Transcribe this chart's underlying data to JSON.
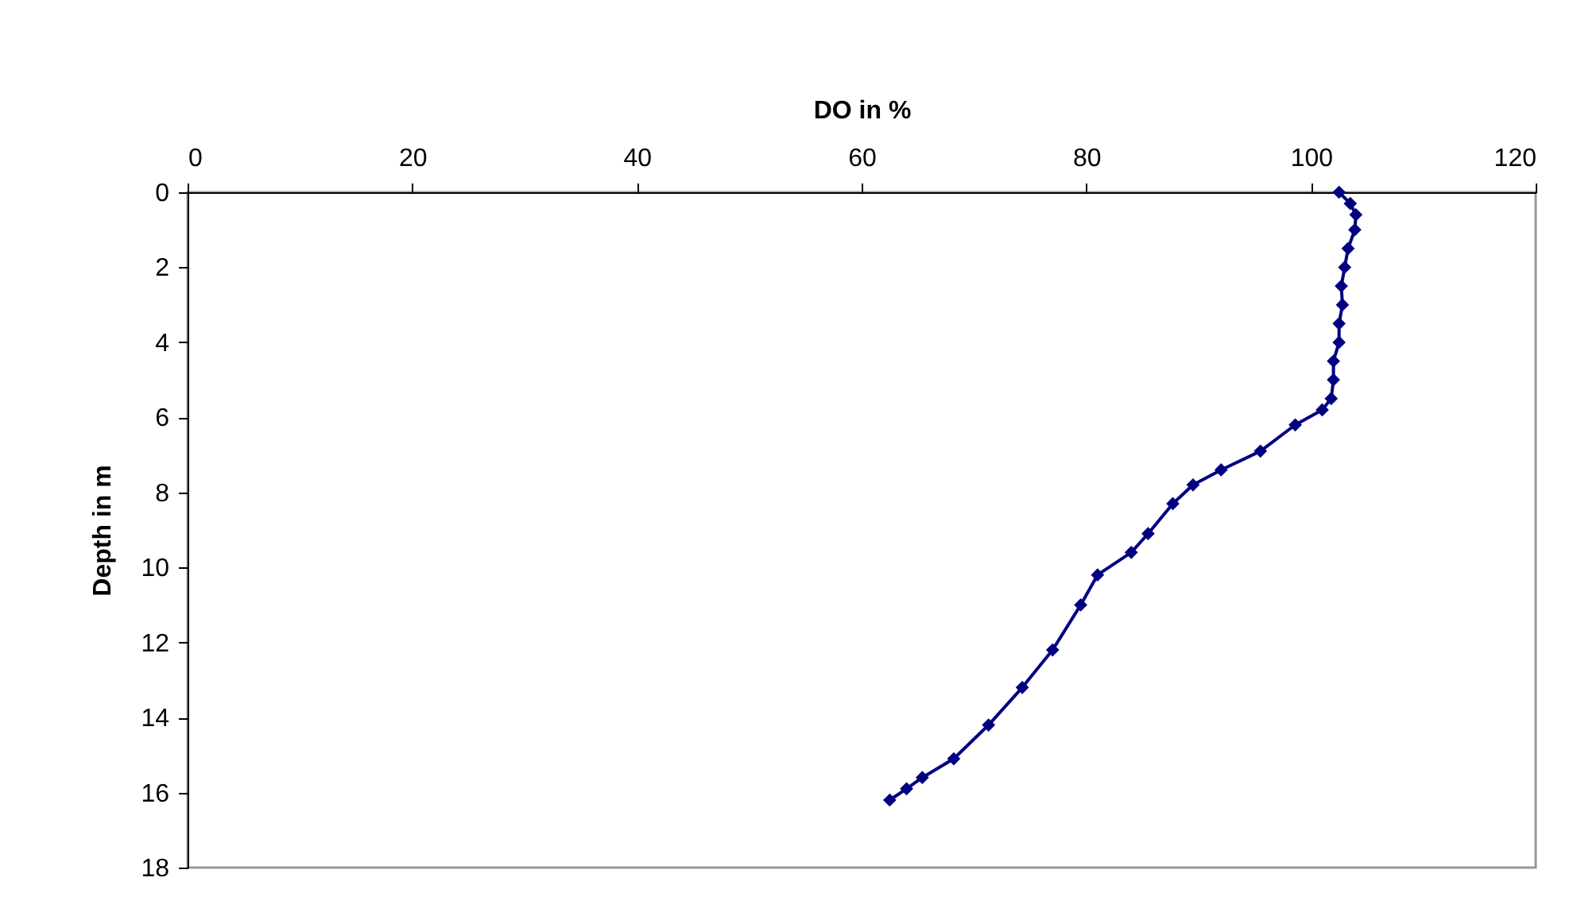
{
  "chart_data": {
    "type": "line",
    "xlabel": "DO in %",
    "ylabel": "Depth in m",
    "xlim": [
      0,
      120
    ],
    "xticks": [
      0,
      20,
      40,
      60,
      80,
      100,
      120
    ],
    "ylim": [
      18,
      0
    ],
    "yticks": [
      0,
      2,
      4,
      6,
      8,
      10,
      12,
      14,
      16,
      18
    ],
    "grid": false,
    "marker": "diamond",
    "line_style": "solid",
    "series": [
      {
        "color": "#000080",
        "x": [
          102.5,
          103.5,
          104,
          103.9,
          103.3,
          103,
          102.7,
          102.8,
          102.5,
          102.5,
          102,
          102,
          101.8,
          101,
          98.6,
          95.5,
          92,
          89.5,
          87.7,
          85.5,
          84,
          81,
          79.5,
          77,
          74.3,
          71.3,
          68.2,
          65.4,
          64,
          62.5
        ],
        "values": [
          0,
          0.3,
          0.6,
          1,
          1.5,
          2,
          2.5,
          3,
          3.5,
          4,
          4.5,
          5,
          5.5,
          5.8,
          6.2,
          6.9,
          7.4,
          7.8,
          8.3,
          9.1,
          9.6,
          10.2,
          11,
          12.2,
          13.2,
          14.2,
          15.1,
          15.6,
          15.9,
          16.2
        ]
      }
    ]
  }
}
